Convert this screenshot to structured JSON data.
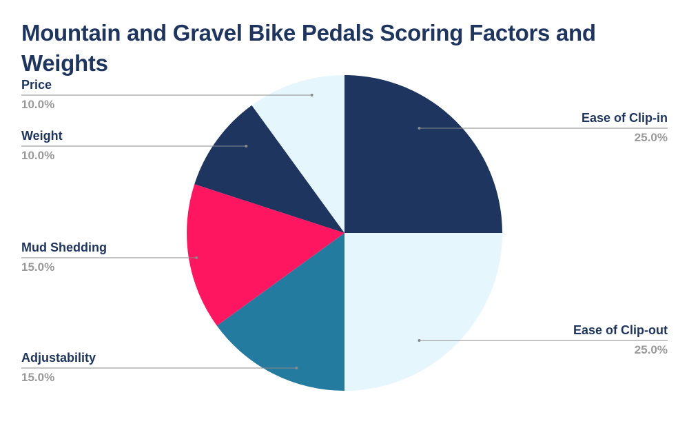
{
  "chart_data": {
    "type": "pie",
    "title": "Mountain and Gravel Bike Pedals Scoring Factors and Weights",
    "slices": [
      {
        "label": "Ease of Clip-in",
        "value": 25.0,
        "value_label": "25.0%",
        "color": "#1e3560"
      },
      {
        "label": "Ease of Clip-out",
        "value": 25.0,
        "value_label": "25.0%",
        "color": "#e6f6fd"
      },
      {
        "label": "Adjustability",
        "value": 15.0,
        "value_label": "15.0%",
        "color": "#247ba0"
      },
      {
        "label": "Mud Shedding",
        "value": 15.0,
        "value_label": "15.0%",
        "color": "#ff1660"
      },
      {
        "label": "Weight",
        "value": 10.0,
        "value_label": "10.0%",
        "color": "#1e3560"
      },
      {
        "label": "Price",
        "value": 10.0,
        "value_label": "10.0%",
        "color": "#e6f6fd"
      }
    ],
    "start_angle_deg": 0,
    "direction": "clockwise",
    "legend": "none",
    "label_color": "#1e3560",
    "value_color": "#999999",
    "leader_color": "#8a8a8a"
  }
}
